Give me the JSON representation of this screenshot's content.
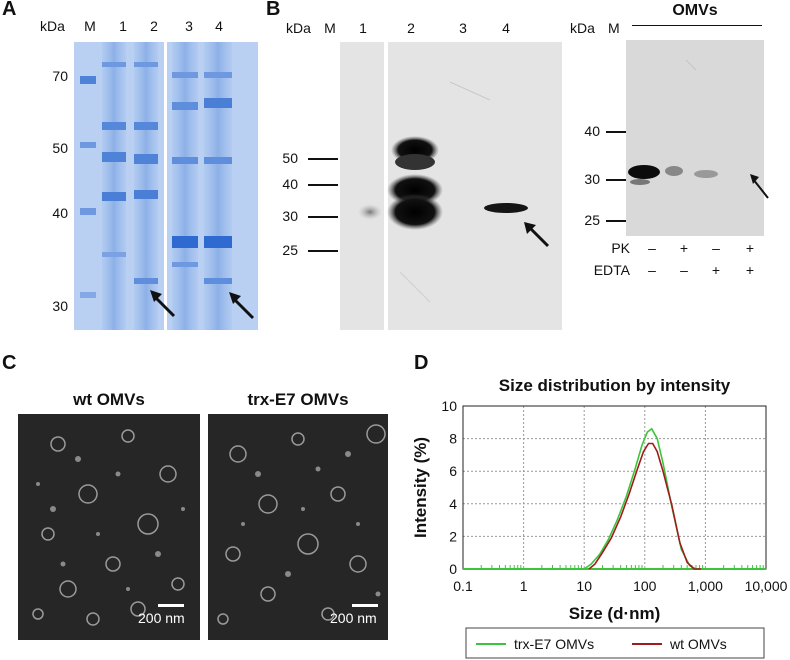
{
  "panel_a": {
    "letter": "A",
    "kda": "kDa",
    "lanes": [
      "M",
      "1",
      "2",
      "3",
      "4"
    ],
    "mw": [
      "70",
      "50",
      "40",
      "30"
    ]
  },
  "panel_b": {
    "letter": "B",
    "kda": "kDa",
    "lanes": [
      "M",
      "1",
      "2",
      "3",
      "4"
    ],
    "mw": [
      "50",
      "40",
      "30",
      "25"
    ],
    "right": {
      "kda": "kDa",
      "m": "M",
      "title": "OMVs",
      "mw": [
        "40",
        "30",
        "25"
      ],
      "pk_label": "PK",
      "edta_label": "EDTA",
      "pk": [
        "–",
        "+",
        "–",
        "+"
      ],
      "edta": [
        "–",
        "–",
        "+",
        "+"
      ]
    }
  },
  "panel_c": {
    "letter": "C",
    "left_title": "wt OMVs",
    "right_title": "trx-E7 OMVs",
    "scale_left": "200 nm",
    "scale_right": "200 nm"
  },
  "panel_d": {
    "letter": "D"
  },
  "chart_data": {
    "type": "line",
    "title": "Size distribution by intensity",
    "xlabel": "Size (d·nm)",
    "ylabel": "Intensity (%)",
    "x_scale": "log",
    "xlim": [
      0.1,
      10000
    ],
    "ylim": [
      0,
      10
    ],
    "xticks": [
      "0.1",
      "1",
      "10",
      "100",
      "1,000",
      "10,000"
    ],
    "yticks": [
      "0",
      "2",
      "4",
      "6",
      "8",
      "10"
    ],
    "grid": true,
    "legend_position": "bottom",
    "series": [
      {
        "name": "trx-E7 OMVs",
        "color": "#3cc43c",
        "x": [
          10,
          13,
          18,
          25,
          35,
          50,
          70,
          90,
          110,
          130,
          160,
          200,
          280,
          400,
          550,
          700,
          900
        ],
        "y": [
          0,
          0.3,
          0.9,
          1.8,
          3.0,
          4.5,
          6.2,
          7.6,
          8.4,
          8.6,
          8.0,
          6.5,
          3.8,
          1.2,
          0.2,
          0,
          0
        ]
      },
      {
        "name": "wt OMVs",
        "color": "#a01c1c",
        "x": [
          12,
          15,
          20,
          28,
          40,
          55,
          75,
          95,
          115,
          135,
          160,
          200,
          280,
          380,
          500,
          650,
          850
        ],
        "y": [
          0,
          0.3,
          1.0,
          1.9,
          3.2,
          4.6,
          6.1,
          7.2,
          7.7,
          7.7,
          7.2,
          6.0,
          3.9,
          1.6,
          0.4,
          0,
          0
        ]
      }
    ]
  }
}
